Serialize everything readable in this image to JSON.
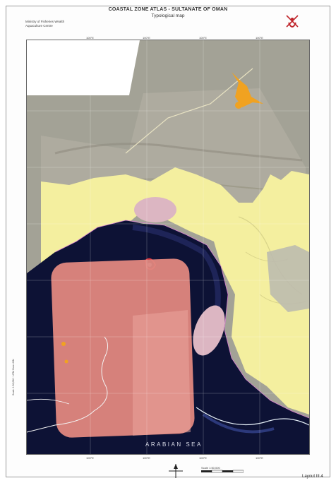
{
  "header": {
    "title": "COASTAL ZONE ATLAS - SULTANATE OF OMAN",
    "subtitle": "Typological map",
    "ministry_line1": "Ministry of Fisheries Wealth",
    "ministry_line2": "Aquaculture Centre"
  },
  "map": {
    "sea_label": "ARABIAN SEA",
    "top_ticks": [
      "100°E",
      "100°E",
      "100°E",
      "100°E"
    ],
    "bottom_ticks": [
      "100°E",
      "100°E",
      "100°E",
      "100°E"
    ],
    "side_note": "Scale: 1:50,000 · UTM Zone 40N"
  },
  "footer": {
    "scale_label": "Scale 1:50,000",
    "layout_label": "Layout  III.4"
  },
  "colors": {
    "land_yellow": "#f4ef9f",
    "sea_dark": "#0d1235",
    "overlay_salmon": "#e2887f",
    "overlay_pink": "#dcb6c2",
    "satellite_gray": "#a9a79c",
    "orange_marks": "#f0a221",
    "logo_red": "#c0262c"
  }
}
